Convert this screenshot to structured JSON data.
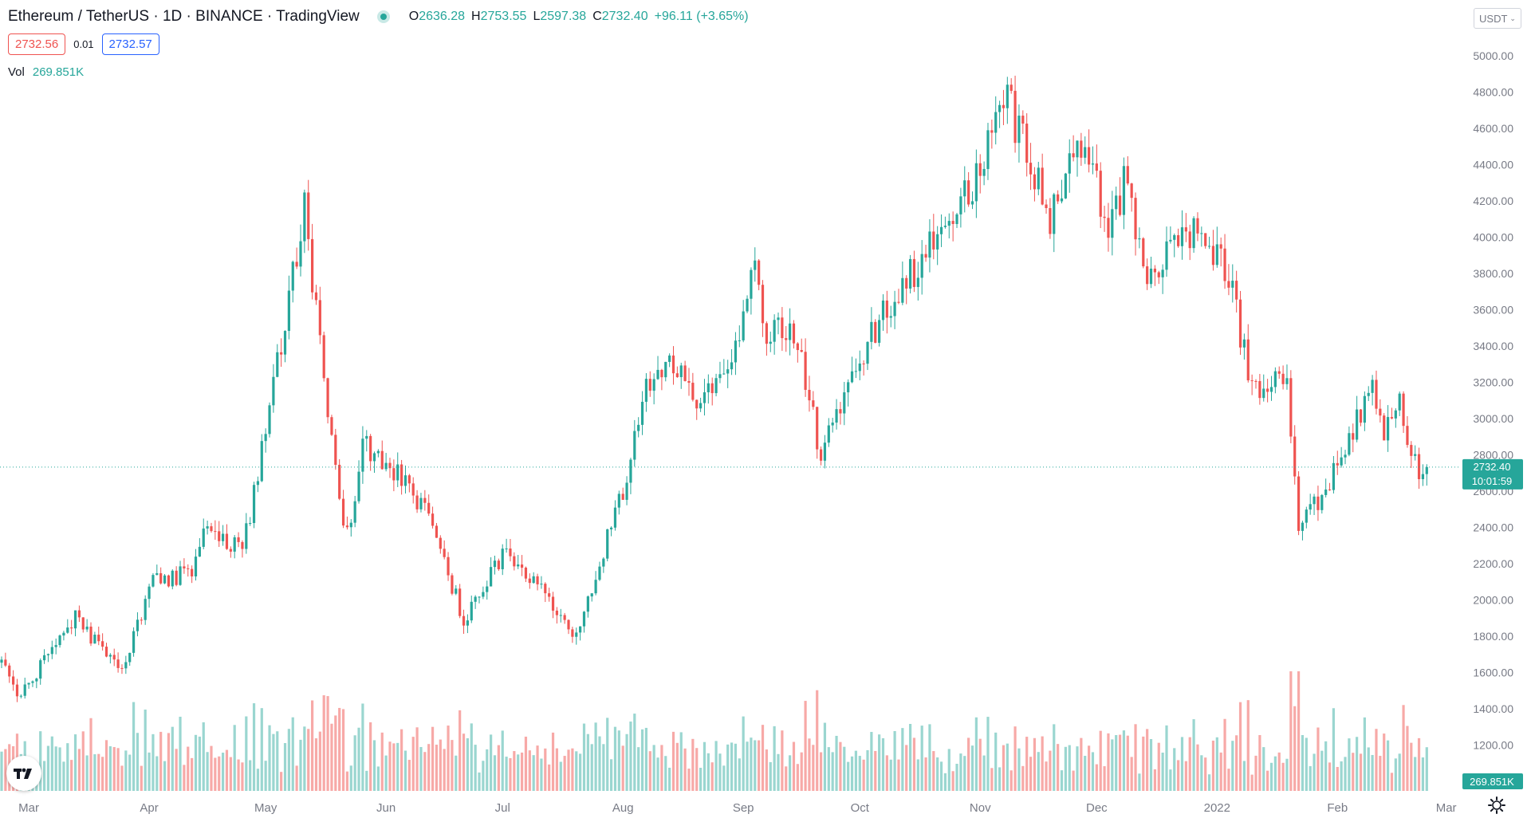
{
  "header": {
    "symbol": "Ethereum / TetherUS",
    "interval": "1D",
    "exchange": "BINANCE",
    "platform": "TradingView",
    "open_label": "O",
    "open": "2636.28",
    "high_label": "H",
    "high": "2753.55",
    "low_label": "L",
    "low": "2597.38",
    "close_label": "C",
    "close": "2732.40",
    "change": "+96.11 (+3.65%)"
  },
  "trade": {
    "sell": "2732.56",
    "spread": "0.01",
    "buy": "2732.57"
  },
  "volume_legend": {
    "label": "Vol",
    "value": "269.851K"
  },
  "currency_button": "USDT",
  "colors": {
    "up": "#26a69a",
    "down": "#ef5350",
    "up_volume": "#9ad6d0",
    "down_volume": "#f7a9a7"
  },
  "icons": {
    "logo": "tradingview-logo-icon",
    "settings": "gear-icon"
  },
  "chart_data": {
    "type": "candlestick",
    "y_axis_ticks": [
      "5000.00",
      "4800.00",
      "4600.00",
      "4400.00",
      "4200.00",
      "4000.00",
      "3800.00",
      "3600.00",
      "3400.00",
      "3200.00",
      "3000.00",
      "2800.00",
      "2600.00",
      "2400.00",
      "2200.00",
      "2000.00",
      "1800.00",
      "1600.00",
      "1400.00",
      "1200.00"
    ],
    "ylim": [
      1050,
      5100
    ],
    "x_axis_labels": [
      "Mar",
      "Apr",
      "May",
      "Jun",
      "Jul",
      "Aug",
      "Sep",
      "Oct",
      "Nov",
      "Dec",
      "2022",
      "Feb",
      "Mar"
    ],
    "grid": false,
    "current_price": "2732.40",
    "countdown": "10:01:59",
    "current_volume": "269.851K",
    "price_path": [
      {
        "date": "2021-02-22",
        "price": 1700
      },
      {
        "date": "2021-02-26",
        "price": 1450
      },
      {
        "date": "2021-03-13",
        "price": 1900
      },
      {
        "date": "2021-03-25",
        "price": 1600
      },
      {
        "date": "2021-04-02",
        "price": 2100
      },
      {
        "date": "2021-04-12",
        "price": 2150
      },
      {
        "date": "2021-04-16",
        "price": 2450
      },
      {
        "date": "2021-04-25",
        "price": 2250
      },
      {
        "date": "2021-05-04",
        "price": 3300
      },
      {
        "date": "2021-05-11",
        "price": 4150
      },
      {
        "date": "2021-05-19",
        "price": 2700
      },
      {
        "date": "2021-05-22",
        "price": 2350
      },
      {
        "date": "2021-05-26",
        "price": 2850
      },
      {
        "date": "2021-06-04",
        "price": 2700
      },
      {
        "date": "2021-06-11",
        "price": 2500
      },
      {
        "date": "2021-06-21",
        "price": 1900
      },
      {
        "date": "2021-07-01",
        "price": 2250
      },
      {
        "date": "2021-07-09",
        "price": 2100
      },
      {
        "date": "2021-07-20",
        "price": 1800
      },
      {
        "date": "2021-08-01",
        "price": 2600
      },
      {
        "date": "2021-08-07",
        "price": 3150
      },
      {
        "date": "2021-08-14",
        "price": 3300
      },
      {
        "date": "2021-08-20",
        "price": 3100
      },
      {
        "date": "2021-08-31",
        "price": 3400
      },
      {
        "date": "2021-09-04",
        "price": 3900
      },
      {
        "date": "2021-09-07",
        "price": 3450
      },
      {
        "date": "2021-09-14",
        "price": 3500
      },
      {
        "date": "2021-09-21",
        "price": 2800
      },
      {
        "date": "2021-10-01",
        "price": 3300
      },
      {
        "date": "2021-10-06",
        "price": 3550
      },
      {
        "date": "2021-10-16",
        "price": 3850
      },
      {
        "date": "2021-10-22",
        "price": 4100
      },
      {
        "date": "2021-10-30",
        "price": 4300
      },
      {
        "date": "2021-11-08",
        "price": 4750
      },
      {
        "date": "2021-11-19",
        "price": 4100
      },
      {
        "date": "2021-11-25",
        "price": 4500
      },
      {
        "date": "2021-11-29",
        "price": 4450
      },
      {
        "date": "2021-12-04",
        "price": 4000
      },
      {
        "date": "2021-12-08",
        "price": 4300
      },
      {
        "date": "2021-12-14",
        "price": 3800
      },
      {
        "date": "2021-12-22",
        "price": 4000
      },
      {
        "date": "2021-12-27",
        "price": 4050
      },
      {
        "date": "2022-01-04",
        "price": 3800
      },
      {
        "date": "2022-01-10",
        "price": 3150
      },
      {
        "date": "2022-01-19",
        "price": 3200
      },
      {
        "date": "2022-01-22",
        "price": 2400
      },
      {
        "date": "2022-01-30",
        "price": 2650
      },
      {
        "date": "2022-02-10",
        "price": 3200
      },
      {
        "date": "2022-02-13",
        "price": 2900
      },
      {
        "date": "2022-02-17",
        "price": 3100
      },
      {
        "date": "2022-02-22",
        "price": 2650
      },
      {
        "date": "2022-02-24",
        "price": 2732
      }
    ]
  }
}
